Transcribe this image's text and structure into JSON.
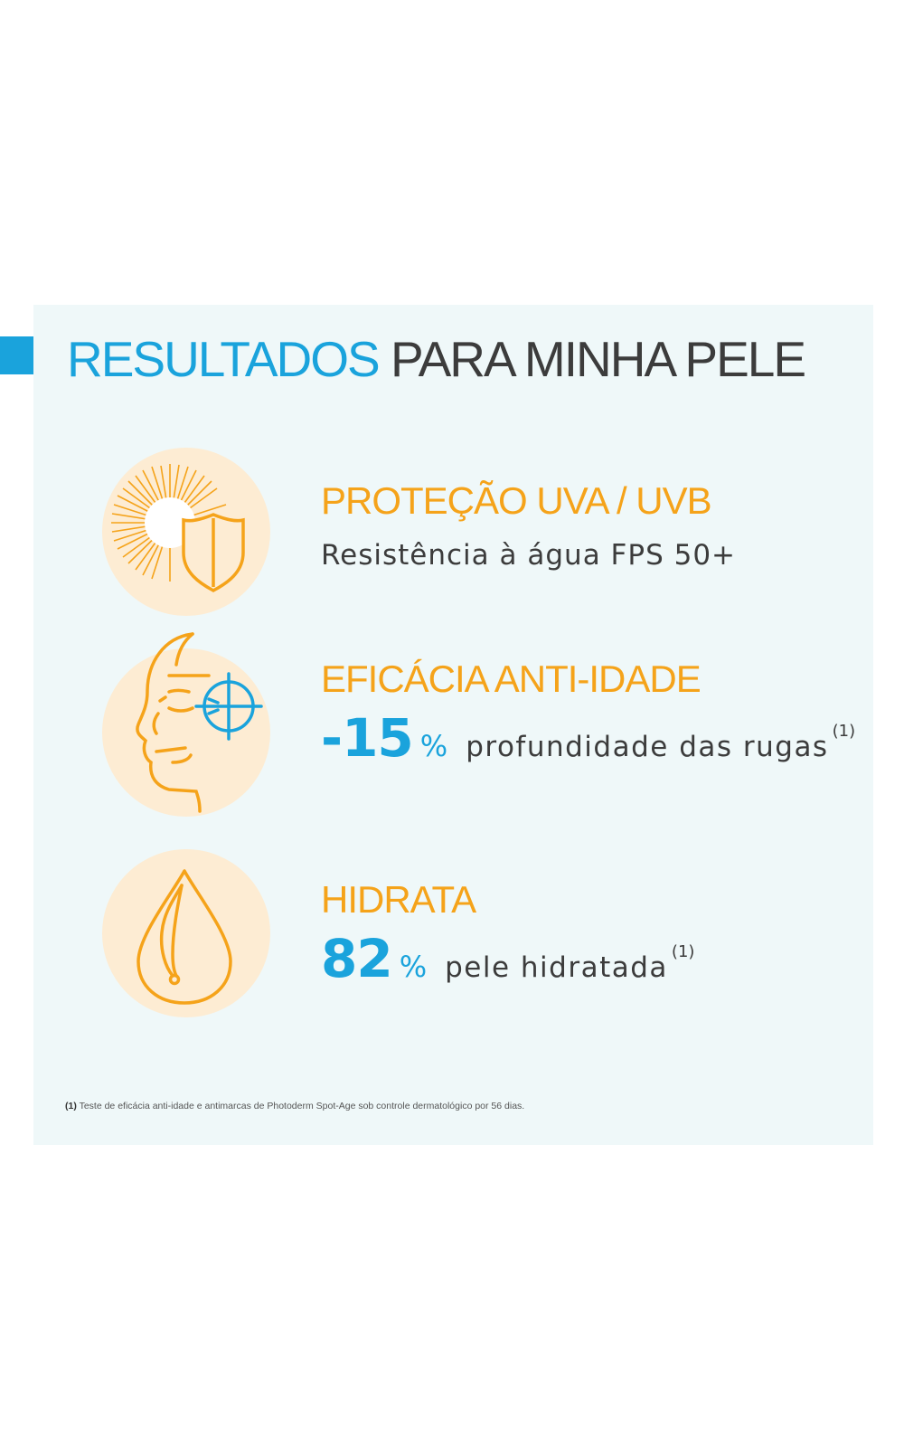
{
  "title": {
    "highlight": "RESULTADOS",
    "rest": "PARA MINHA PELE"
  },
  "benefits": [
    {
      "heading": "PROTEÇÃO UVA / UVB",
      "detail": "Resistência à água FPS 50+",
      "icon": "sun-shield-icon"
    },
    {
      "heading": "EFICÁCIA ANTI-IDADE",
      "value": "-15",
      "unit": "%",
      "detail": "profundidade das rugas",
      "note": "(1)",
      "icon": "face-target-icon"
    },
    {
      "heading": "HIDRATA",
      "value": "82",
      "unit": "%",
      "detail": "pele hidratada",
      "note": "(1)",
      "icon": "water-drop-icon"
    }
  ],
  "footnote": {
    "marker": "(1)",
    "text": "Teste de eficácia anti-idade e antimarcas de Photoderm Spot-Age sob controle dermatológico por 56 dias."
  },
  "colors": {
    "blue": "#1aa3dc",
    "orange": "#f5a31a",
    "panel": "#eff8f9",
    "circle": "#fdecd3"
  }
}
